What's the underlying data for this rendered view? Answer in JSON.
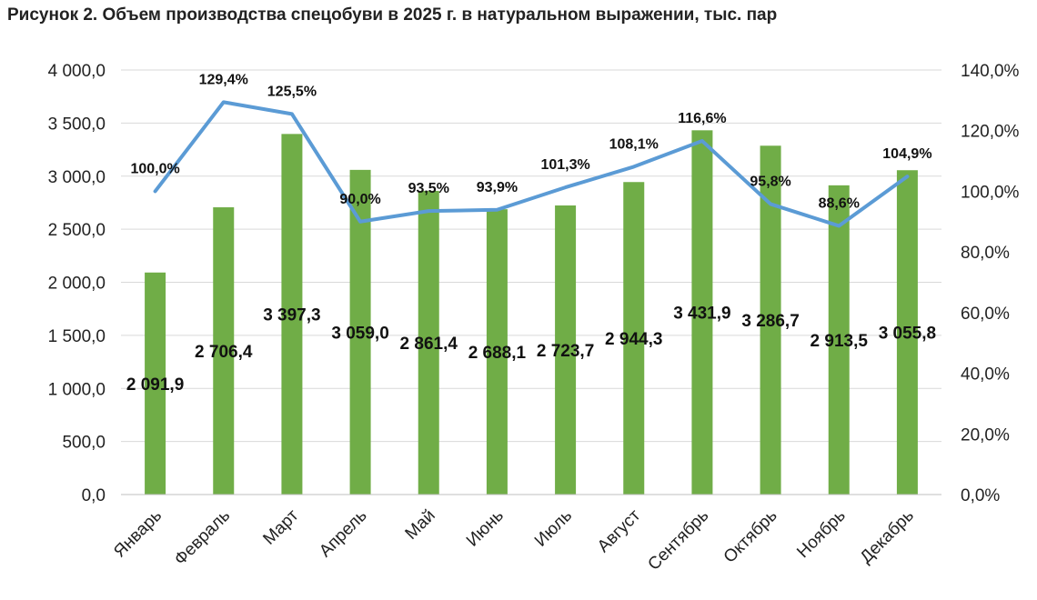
{
  "chart_data": {
    "type": "bar",
    "title": "Рисунок 2. Объем производства спецобуви в 2025 г. в натуральном выражении, тыс. пар",
    "categories": [
      "Январь",
      "Февраль",
      "Март",
      "Апрель",
      "Май",
      "Июнь",
      "Июль",
      "Август",
      "Сентябрь",
      "Октябрь",
      "Ноябрь",
      "Декабрь"
    ],
    "series": [
      {
        "type": "bar",
        "axis": "left",
        "color": "#70AD47",
        "values": [
          2091.9,
          2706.4,
          3397.3,
          3059.0,
          2861.4,
          2688.1,
          2723.7,
          2944.3,
          3431.9,
          3286.7,
          2913.5,
          3055.8
        ],
        "labels": [
          "2 091,9",
          "2 706,4",
          "3 397,3",
          "3 059,0",
          "2 861,4",
          "2 688,1",
          "2 723,7",
          "2 944,3",
          "3 431,9",
          "3 286,7",
          "2 913,5",
          "3 055,8"
        ]
      },
      {
        "type": "line",
        "axis": "right",
        "color": "#5B9BD5",
        "values": [
          100.0,
          129.4,
          125.5,
          90.0,
          93.5,
          93.9,
          101.3,
          108.1,
          116.6,
          95.8,
          88.6,
          104.9
        ],
        "labels": [
          "100,0%",
          "129,4%",
          "125,5%",
          "90,0%",
          "93,5%",
          "93,9%",
          "101,3%",
          "108,1%",
          "116,6%",
          "95,8%",
          "88,6%",
          "104,9%"
        ]
      }
    ],
    "y_left": {
      "range": [
        0,
        4000
      ],
      "ticks": [
        0,
        500,
        1000,
        1500,
        2000,
        2500,
        3000,
        3500,
        4000
      ],
      "tick_labels": [
        "0,0",
        "500,0",
        "1 000,0",
        "1 500,0",
        "2 000,0",
        "2 500,0",
        "3 000,0",
        "3 500,0",
        "4 000,0"
      ]
    },
    "y_right": {
      "range": [
        0,
        140
      ],
      "ticks": [
        0,
        20,
        40,
        60,
        80,
        100,
        120,
        140
      ],
      "tick_labels": [
        "0,0%",
        "20,0%",
        "40,0%",
        "60,0%",
        "80,0%",
        "100,0%",
        "120,0%",
        "140,0%"
      ]
    },
    "grid": true,
    "legend": "none"
  }
}
